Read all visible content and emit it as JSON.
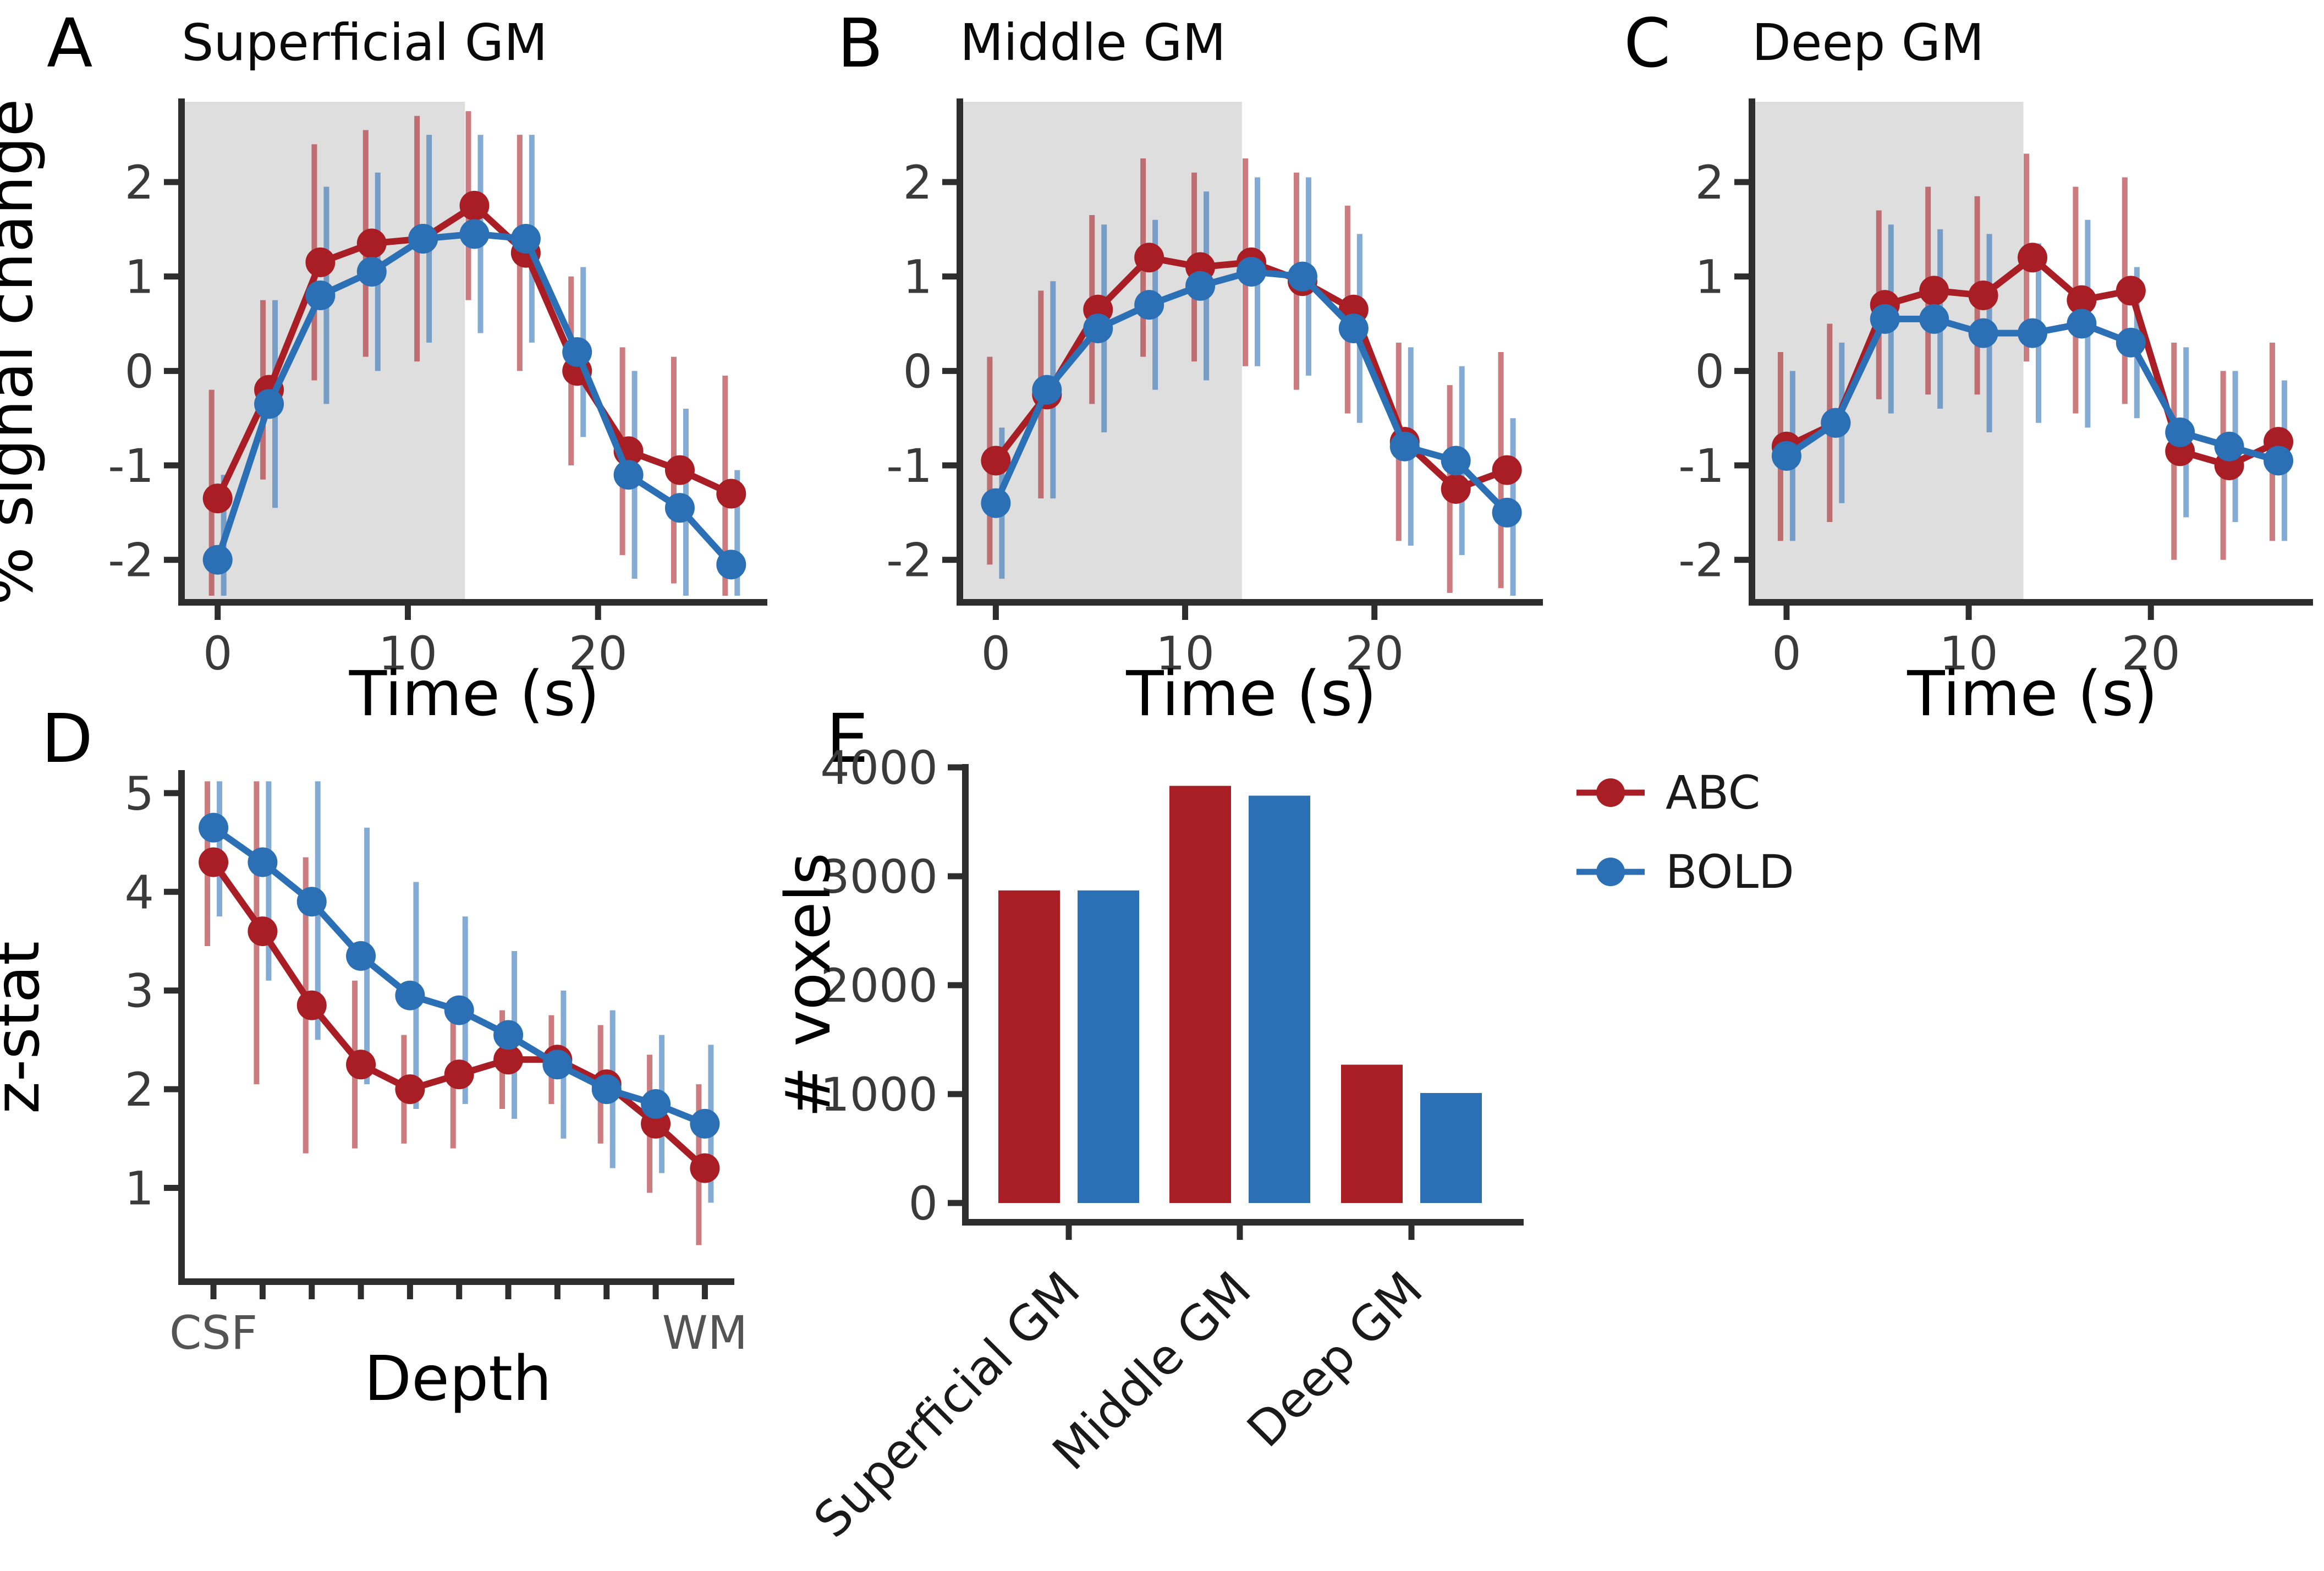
{
  "figure": {
    "colors": {
      "abc": "#a81e24",
      "bold": "#2b6fb5",
      "shade": "#dedede",
      "axis": "#2d2d2d",
      "tick_text": "#3a3a3a",
      "muted_tick_text": "#545454",
      "label_text": "#000000",
      "category_text": "#1a1a1a"
    },
    "legend": {
      "items": [
        {
          "label": "ABC",
          "color": "#a81e24"
        },
        {
          "label": "BOLD",
          "color": "#2b6fb5"
        }
      ]
    }
  },
  "chart_data": [
    {
      "id": "superficial-gm",
      "letter": "A",
      "title": "Superficial GM",
      "type": "line",
      "xlabel": "Time (s)",
      "ylabel": "% signal change",
      "x": [
        0,
        2.7,
        5.4,
        8.1,
        10.8,
        13.5,
        16.2,
        18.9,
        21.6,
        24.3,
        27
      ],
      "xlim": [
        -1.9,
        28.9
      ],
      "ylim": [
        -2.45,
        2.85
      ],
      "xticks": [
        0,
        10,
        20
      ],
      "yticks": [
        -2,
        -1,
        0,
        1,
        2
      ],
      "shade_x": [
        -1.9,
        13
      ],
      "series": [
        {
          "name": "ABC",
          "color_key": "abc",
          "values": [
            -1.35,
            -0.2,
            1.15,
            1.35,
            1.4,
            1.75,
            1.25,
            0.0,
            -0.85,
            -1.05,
            -1.3
          ],
          "err": [
            1.15,
            0.95,
            1.25,
            1.2,
            1.3,
            1.0,
            1.25,
            1.0,
            1.1,
            1.2,
            1.25
          ]
        },
        {
          "name": "BOLD",
          "color_key": "bold",
          "values": [
            -2.0,
            -0.35,
            0.8,
            1.05,
            1.4,
            1.45,
            1.4,
            0.2,
            -1.1,
            -1.45,
            -2.05
          ],
          "err": [
            0.9,
            1.1,
            1.15,
            1.05,
            1.1,
            1.05,
            1.1,
            0.9,
            1.1,
            1.05,
            1.0
          ]
        }
      ]
    },
    {
      "id": "middle-gm",
      "letter": "B",
      "title": "Middle GM",
      "type": "line",
      "xlabel": "Time (s)",
      "ylabel": "",
      "x": [
        0,
        2.7,
        5.4,
        8.1,
        10.8,
        13.5,
        16.2,
        18.9,
        21.6,
        24.3,
        27
      ],
      "xlim": [
        -1.9,
        28.9
      ],
      "ylim": [
        -2.45,
        2.85
      ],
      "xticks": [
        0,
        10,
        20
      ],
      "yticks": [
        -2,
        -1,
        0,
        1,
        2
      ],
      "shade_x": [
        -1.9,
        13
      ],
      "series": [
        {
          "name": "ABC",
          "color_key": "abc",
          "values": [
            -0.95,
            -0.25,
            0.65,
            1.2,
            1.1,
            1.15,
            0.95,
            0.65,
            -0.75,
            -1.25,
            -1.05
          ],
          "err": [
            1.1,
            1.1,
            1.0,
            1.05,
            1.0,
            1.1,
            1.15,
            1.1,
            1.05,
            1.1,
            1.25
          ]
        },
        {
          "name": "BOLD",
          "color_key": "bold",
          "values": [
            -1.4,
            -0.2,
            0.45,
            0.7,
            0.9,
            1.05,
            1.0,
            0.45,
            -0.8,
            -0.95,
            -1.5
          ],
          "err": [
            0.8,
            1.15,
            1.1,
            0.9,
            1.0,
            1.0,
            1.05,
            1.0,
            1.05,
            1.0,
            1.0
          ]
        }
      ]
    },
    {
      "id": "deep-gm",
      "letter": "C",
      "title": "Deep GM",
      "type": "line",
      "xlabel": "Time (s)",
      "ylabel": "",
      "x": [
        0,
        2.7,
        5.4,
        8.1,
        10.8,
        13.5,
        16.2,
        18.9,
        21.6,
        24.3,
        27
      ],
      "xlim": [
        -1.9,
        28.9
      ],
      "ylim": [
        -2.45,
        2.85
      ],
      "xticks": [
        0,
        10,
        20
      ],
      "yticks": [
        -2,
        -1,
        0,
        1,
        2
      ],
      "shade_x": [
        -1.9,
        13
      ],
      "series": [
        {
          "name": "ABC",
          "color_key": "abc",
          "values": [
            -0.8,
            -0.55,
            0.7,
            0.85,
            0.8,
            1.2,
            0.75,
            0.85,
            -0.85,
            -1.0,
            -0.75
          ],
          "err": [
            1.0,
            1.05,
            1.0,
            1.1,
            1.05,
            1.1,
            1.2,
            1.2,
            1.15,
            1.0,
            1.05
          ]
        },
        {
          "name": "BOLD",
          "color_key": "bold",
          "values": [
            -0.9,
            -0.55,
            0.55,
            0.55,
            0.4,
            0.4,
            0.5,
            0.3,
            -0.65,
            -0.8,
            -0.95
          ],
          "err": [
            0.9,
            0.85,
            1.0,
            0.95,
            1.05,
            0.95,
            1.1,
            0.8,
            0.9,
            0.8,
            0.85
          ]
        }
      ]
    },
    {
      "id": "zstat-depth",
      "letter": "D",
      "title": "",
      "type": "line",
      "xlabel": "Depth",
      "ylabel": "z-stat",
      "x": [
        1,
        2,
        3,
        4,
        5,
        6,
        7,
        8,
        9,
        10,
        11
      ],
      "xlim": [
        0.35,
        11.6
      ],
      "ylim": [
        0.05,
        5.2
      ],
      "xticks": [
        1,
        2,
        3,
        4,
        5,
        6,
        7,
        8,
        9,
        10,
        11
      ],
      "xtick_labels": [
        "CSF",
        "",
        "",
        "",
        "",
        "",
        "",
        "",
        "",
        "",
        "WM"
      ],
      "yticks": [
        1,
        2,
        3,
        4,
        5
      ],
      "series": [
        {
          "name": "ABC",
          "color_key": "abc",
          "values": [
            4.3,
            3.6,
            2.85,
            2.25,
            2.0,
            2.15,
            2.3,
            2.3,
            2.05,
            1.65,
            1.2
          ],
          "err": [
            0.85,
            1.55,
            1.5,
            0.85,
            0.55,
            0.75,
            0.5,
            0.45,
            0.6,
            0.7,
            0.85
          ]
        },
        {
          "name": "BOLD",
          "color_key": "bold",
          "values": [
            4.65,
            4.3,
            3.9,
            3.35,
            2.95,
            2.8,
            2.55,
            2.25,
            2.0,
            1.85,
            1.65
          ],
          "err": [
            0.9,
            1.2,
            1.4,
            1.3,
            1.15,
            0.95,
            0.85,
            0.75,
            0.8,
            0.7,
            0.8
          ]
        }
      ]
    },
    {
      "id": "voxel-counts",
      "letter": "E",
      "title": "",
      "type": "bar",
      "ylabel": "# voxels",
      "categories": [
        "Superficial GM",
        "Middle GM",
        "Deep GM"
      ],
      "ylim": [
        0,
        4000
      ],
      "yticks": [
        0,
        1000,
        2000,
        3000,
        4000
      ],
      "series": [
        {
          "name": "ABC",
          "color_key": "abc",
          "values": [
            2870,
            3830,
            1270
          ]
        },
        {
          "name": "BOLD",
          "color_key": "bold",
          "values": [
            2870,
            3740,
            1010
          ]
        }
      ]
    }
  ]
}
